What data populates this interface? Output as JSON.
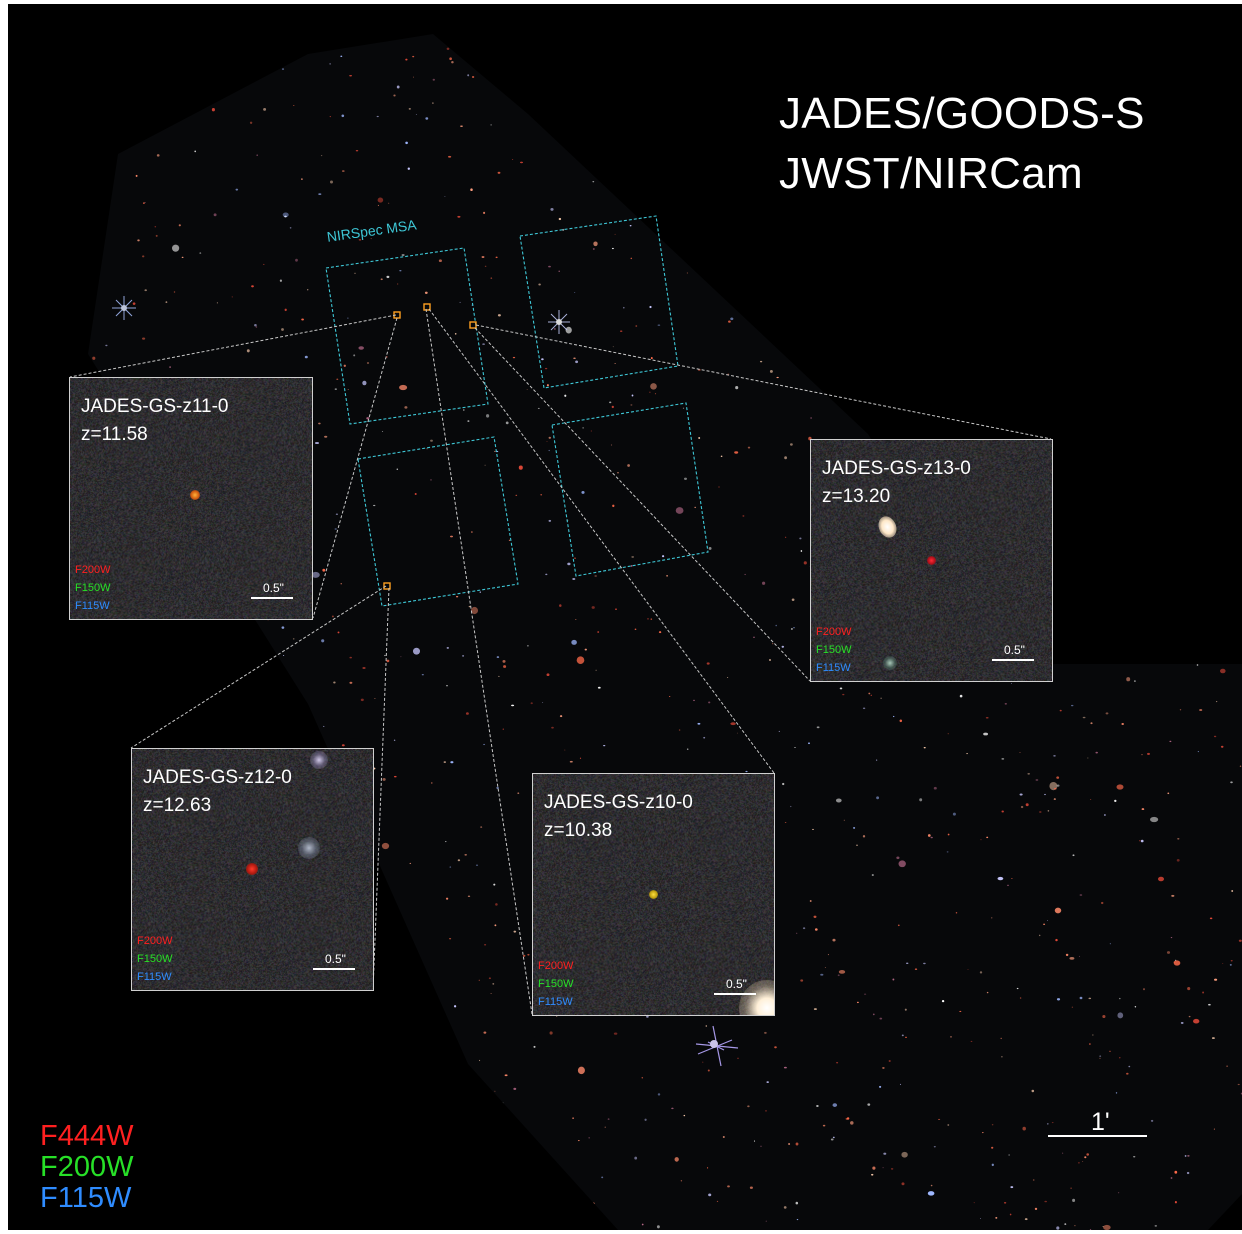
{
  "title": {
    "line1": "JADES/GOODS-S",
    "line2": "JWST/NIRCam"
  },
  "msa_label": "NIRSpec MSA",
  "insets": [
    {
      "name": "JADES-GS-z11-0",
      "redshift": "z=11.58",
      "filters": [
        "F200W",
        "F150W",
        "F115W"
      ],
      "scale_label": "0.5\""
    },
    {
      "name": "JADES-GS-z13-0",
      "redshift": "z=13.20",
      "filters": [
        "F200W",
        "F150W",
        "F115W"
      ],
      "scale_label": "0.5\""
    },
    {
      "name": "JADES-GS-z12-0",
      "redshift": "z=12.63",
      "filters": [
        "F200W",
        "F150W",
        "F115W"
      ],
      "scale_label": "0.5\""
    },
    {
      "name": "JADES-GS-z10-0",
      "redshift": "z=10.38",
      "filters": [
        "F200W",
        "F150W",
        "F115W"
      ],
      "scale_label": "0.5\""
    }
  ],
  "legend": [
    "F444W",
    "F200W",
    "F115W"
  ],
  "scale_bar_label": "1'",
  "colors": {
    "background": "#000000",
    "msa_outline": "#3ec7d6",
    "red_filter": "#ff2020",
    "green_filter": "#27e027",
    "blue_filter": "#2f8cff",
    "inset_border": "#d0d0d0",
    "callout_line": "#c8c8c8",
    "candidate_marker": "#ffa020"
  }
}
